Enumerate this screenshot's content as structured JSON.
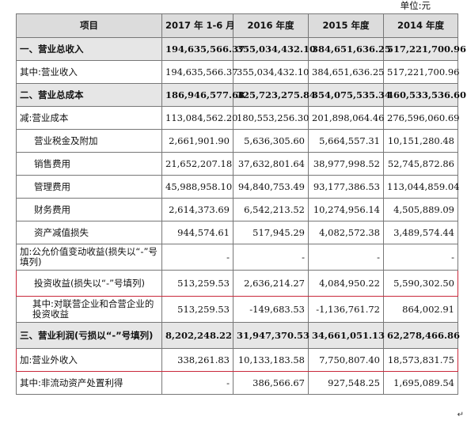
{
  "unit": "单位:元",
  "headers": [
    "项目",
    "2017 年 1-6 月",
    "2016 年度",
    "2015 年度",
    "2014 年度"
  ],
  "rows": [
    {
      "label": "一、营业总收入",
      "values": [
        "194,635,566.37",
        "355,034,432.10",
        "384,651,636.25",
        "517,221,700.96"
      ]
    },
    {
      "label": "其中:营业收入",
      "values": [
        "194,635,566.37",
        "355,034,432.10",
        "384,651,636.25",
        "517,221,700.96"
      ]
    },
    {
      "label": "二、营业总成本",
      "values": [
        "186,946,577.68",
        "325,723,275.84",
        "354,075,535.34",
        "460,533,536.60"
      ]
    },
    {
      "label": "减:营业成本",
      "values": [
        "113,084,562.20",
        "180,553,256.30",
        "201,898,064.46",
        "276,596,060.69"
      ]
    },
    {
      "label": "营业税金及附加",
      "values": [
        "2,661,901.90",
        "5,636,305.60",
        "5,664,557.31",
        "10,151,280.48"
      ]
    },
    {
      "label": "销售费用",
      "values": [
        "21,652,207.18",
        "37,632,801.64",
        "38,977,998.52",
        "52,745,872.86"
      ]
    },
    {
      "label": "管理费用",
      "values": [
        "45,988,958.10",
        "94,840,753.49",
        "93,177,386.53",
        "113,044,859.04"
      ]
    },
    {
      "label": "财务费用",
      "values": [
        "2,614,373.69",
        "6,542,213.52",
        "10,274,956.14",
        "4,505,889.09"
      ]
    },
    {
      "label": "资产减值损失",
      "values": [
        "944,574.61",
        "517,945.29",
        "4,082,572.38",
        "3,489,574.44"
      ]
    },
    {
      "label": "加:公允价值变动收益(损失以“-”号填列)",
      "values": [
        "-",
        "-",
        "-",
        "-"
      ]
    },
    {
      "label": "投资收益(损失以“-”号填列)",
      "values": [
        "513,259.53",
        "2,636,214.27",
        "4,084,950.22",
        "5,590,302.50"
      ]
    },
    {
      "label": "其中:对联营企业和合营企业的投资收益",
      "values": [
        "513,259.53",
        "-149,683.53",
        "-1,136,761.72",
        "864,002.91"
      ]
    },
    {
      "label": "三、营业利润(亏损以“-”号填列)",
      "values": [
        "8,202,248.22",
        "31,947,370.53",
        "34,661,051.13",
        "62,278,466.86"
      ]
    },
    {
      "label": "加:营业外收入",
      "values": [
        "338,261.83",
        "10,133,183.58",
        "7,750,807.40",
        "18,573,831.75"
      ]
    },
    {
      "label": "其中:非流动资产处置利得",
      "values": [
        "-",
        "386,566.67",
        "927,548.25",
        "1,695,089.54"
      ]
    }
  ],
  "return_mark": "↵"
}
